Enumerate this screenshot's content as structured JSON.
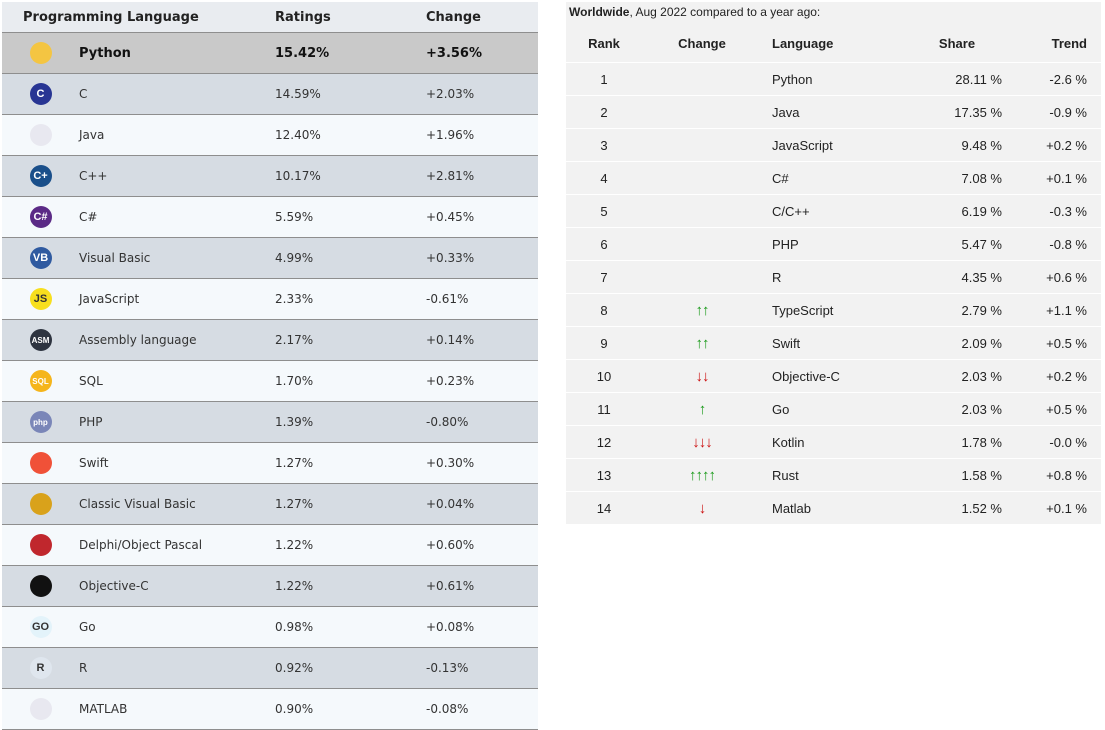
{
  "left_table": {
    "headers": {
      "language": "Programming Language",
      "ratings": "Ratings",
      "change": "Change"
    },
    "rows": [
      {
        "language": "Python",
        "ratings": "15.42%",
        "change": "+3.56%",
        "icon": "python-icon",
        "icon_text": "",
        "icon_color": "#f4c542"
      },
      {
        "language": "C",
        "ratings": "14.59%",
        "change": "+2.03%",
        "icon": "c-icon",
        "icon_text": "C",
        "icon_color": "#283593"
      },
      {
        "language": "Java",
        "ratings": "12.40%",
        "change": "+1.96%",
        "icon": "java-icon",
        "icon_text": "",
        "icon_color": "#e8e8f0"
      },
      {
        "language": "C++",
        "ratings": "10.17%",
        "change": "+2.81%",
        "icon": "cpp-icon",
        "icon_text": "C+",
        "icon_color": "#1a4f8a"
      },
      {
        "language": "C#",
        "ratings": "5.59%",
        "change": "+0.45%",
        "icon": "csharp-icon",
        "icon_text": "C#",
        "icon_color": "#5b2a86"
      },
      {
        "language": "Visual Basic",
        "ratings": "4.99%",
        "change": "+0.33%",
        "icon": "visual-basic-icon",
        "icon_text": "VB",
        "icon_color": "#2f5aa0"
      },
      {
        "language": "JavaScript",
        "ratings": "2.33%",
        "change": "-0.61%",
        "icon": "javascript-icon",
        "icon_text": "JS",
        "icon_color": "#f7df1e"
      },
      {
        "language": "Assembly language",
        "ratings": "2.17%",
        "change": "+0.14%",
        "icon": "assembly-icon",
        "icon_text": "ASM",
        "icon_color": "#2e3440"
      },
      {
        "language": "SQL",
        "ratings": "1.70%",
        "change": "+0.23%",
        "icon": "sql-icon",
        "icon_text": "SQL",
        "icon_color": "#f5b51b"
      },
      {
        "language": "PHP",
        "ratings": "1.39%",
        "change": "-0.80%",
        "icon": "php-icon",
        "icon_text": "php",
        "icon_color": "#7a86b8"
      },
      {
        "language": "Swift",
        "ratings": "1.27%",
        "change": "+0.30%",
        "icon": "swift-icon",
        "icon_text": "",
        "icon_color": "#f05138"
      },
      {
        "language": "Classic Visual Basic",
        "ratings": "1.27%",
        "change": "+0.04%",
        "icon": "classic-vb-icon",
        "icon_text": "",
        "icon_color": "#d9a21b"
      },
      {
        "language": "Delphi/Object Pascal",
        "ratings": "1.22%",
        "change": "+0.60%",
        "icon": "delphi-icon",
        "icon_text": "",
        "icon_color": "#c0272d"
      },
      {
        "language": "Objective-C",
        "ratings": "1.22%",
        "change": "+0.61%",
        "icon": "objective-c-icon",
        "icon_text": "",
        "icon_color": "#111111"
      },
      {
        "language": "Go",
        "ratings": "0.98%",
        "change": "+0.08%",
        "icon": "go-icon",
        "icon_text": "GO",
        "icon_color": "#e3f3fa"
      },
      {
        "language": "R",
        "ratings": "0.92%",
        "change": "-0.13%",
        "icon": "r-icon",
        "icon_text": "R",
        "icon_color": "#dfe6ee"
      },
      {
        "language": "MATLAB",
        "ratings": "0.90%",
        "change": "-0.08%",
        "icon": "matlab-icon",
        "icon_text": "",
        "icon_color": "#e8e8f0"
      }
    ]
  },
  "right_table": {
    "caption_bold": "Worldwide",
    "caption_rest": ", Aug 2022 compared to a year ago:",
    "headers": {
      "rank": "Rank",
      "change": "Change",
      "language": "Language",
      "share": "Share",
      "trend": "Trend"
    },
    "rows": [
      {
        "rank": "1",
        "change": "",
        "dir": "none",
        "language": "Python",
        "share": "28.11 %",
        "trend": "-2.6 %"
      },
      {
        "rank": "2",
        "change": "",
        "dir": "none",
        "language": "Java",
        "share": "17.35 %",
        "trend": "-0.9 %"
      },
      {
        "rank": "3",
        "change": "",
        "dir": "none",
        "language": "JavaScript",
        "share": "9.48 %",
        "trend": "+0.2 %"
      },
      {
        "rank": "4",
        "change": "",
        "dir": "none",
        "language": "C#",
        "share": "7.08 %",
        "trend": "+0.1 %"
      },
      {
        "rank": "5",
        "change": "",
        "dir": "none",
        "language": "C/C++",
        "share": "6.19 %",
        "trend": "-0.3 %"
      },
      {
        "rank": "6",
        "change": "",
        "dir": "none",
        "language": "PHP",
        "share": "5.47 %",
        "trend": "-0.8 %"
      },
      {
        "rank": "7",
        "change": "",
        "dir": "none",
        "language": "R",
        "share": "4.35 %",
        "trend": "+0.6 %"
      },
      {
        "rank": "8",
        "change": "↑↑",
        "dir": "up",
        "language": "TypeScript",
        "share": "2.79 %",
        "trend": "+1.1 %"
      },
      {
        "rank": "9",
        "change": "↑↑",
        "dir": "up",
        "language": "Swift",
        "share": "2.09 %",
        "trend": "+0.5 %"
      },
      {
        "rank": "10",
        "change": "↓↓",
        "dir": "down",
        "language": "Objective-C",
        "share": "2.03 %",
        "trend": "+0.2 %"
      },
      {
        "rank": "11",
        "change": "↑",
        "dir": "up",
        "language": "Go",
        "share": "2.03 %",
        "trend": "+0.5 %"
      },
      {
        "rank": "12",
        "change": "↓↓↓",
        "dir": "down",
        "language": "Kotlin",
        "share": "1.78 %",
        "trend": "-0.0 %"
      },
      {
        "rank": "13",
        "change": "↑↑↑↑",
        "dir": "up",
        "language": "Rust",
        "share": "1.58 %",
        "trend": "+0.8 %"
      },
      {
        "rank": "14",
        "change": "↓",
        "dir": "down",
        "language": "Matlab",
        "share": "1.52 %",
        "trend": "+0.1 %"
      }
    ]
  }
}
